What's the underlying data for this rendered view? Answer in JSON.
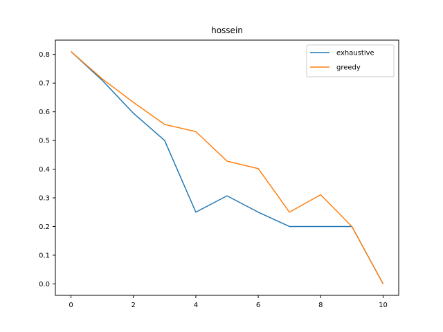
{
  "chart_data": {
    "type": "line",
    "title": "hossein",
    "xlabel": "",
    "ylabel": "",
    "xlim": [
      -0.5,
      10.5
    ],
    "ylim": [
      -0.04,
      0.85
    ],
    "x_ticks": [
      0,
      2,
      4,
      6,
      8,
      10
    ],
    "x_tick_labels": [
      "0",
      "2",
      "4",
      "6",
      "8",
      "10"
    ],
    "y_ticks": [
      0.0,
      0.1,
      0.2,
      0.3,
      0.4,
      0.5,
      0.6,
      0.7,
      0.8
    ],
    "y_tick_labels": [
      "0.0",
      "0.1",
      "0.2",
      "0.3",
      "0.4",
      "0.5",
      "0.6",
      "0.7",
      "0.8"
    ],
    "grid": false,
    "legend_position": "top-right",
    "x": [
      0,
      1,
      2,
      3,
      4,
      5,
      6,
      7,
      8,
      9,
      10
    ],
    "series": [
      {
        "name": "exhaustive",
        "color": "#1f77b4",
        "values": [
          0.81,
          0.71,
          0.595,
          0.5,
          0.25,
          0.307,
          0.25,
          0.2,
          0.2,
          0.2,
          0.0
        ]
      },
      {
        "name": "greedy",
        "color": "#ff7f0e",
        "values": [
          0.81,
          0.715,
          0.633,
          0.556,
          0.531,
          0.428,
          0.402,
          0.25,
          0.311,
          0.2,
          0.0
        ]
      }
    ]
  }
}
